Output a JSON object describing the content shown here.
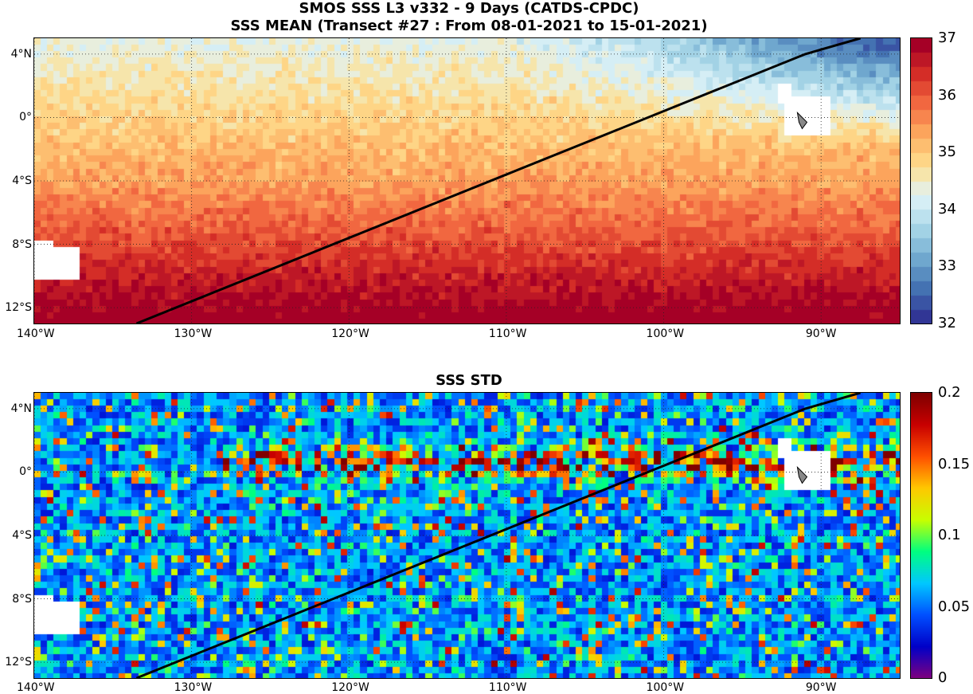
{
  "titles": {
    "line1": "SMOS SSS L3 v332 - 9 Days (CATDS-CPDC)",
    "line2": "SSS MEAN (Transect #27 : From 08-01-2021 to 15-01-2021)",
    "std": "SSS STD"
  },
  "map": {
    "lon_range": [
      -140,
      -85
    ],
    "lat_range": [
      -13,
      5
    ],
    "lon_ticks": [
      "140°W",
      "130°W",
      "120°W",
      "110°W",
      "100°W",
      "90°W"
    ],
    "lon_tick_values": [
      -140,
      -130,
      -120,
      -110,
      -100,
      -90
    ],
    "lat_ticks": [
      "4°N",
      "0°",
      "4°S",
      "8°S",
      "12°S"
    ],
    "lat_tick_values": [
      4,
      0,
      -4,
      -8,
      -12
    ],
    "transect": [
      [
        -133.5,
        -13
      ],
      [
        -91,
        4
      ],
      [
        -87.5,
        5
      ]
    ]
  },
  "mean_panel": {
    "colorbar": {
      "min": 32,
      "max": 37,
      "ticks": [
        "37",
        "36",
        "35",
        "34",
        "33",
        "32"
      ],
      "tick_values": [
        37,
        36,
        35,
        34,
        33,
        32
      ],
      "palette": [
        "#313695",
        "#4575b4",
        "#74add1",
        "#abd9e9",
        "#e0f3f8",
        "#fee090",
        "#fdae61",
        "#f46d43",
        "#d73027",
        "#a50026"
      ]
    }
  },
  "std_panel": {
    "colorbar": {
      "min": 0,
      "max": 0.2,
      "ticks": [
        "0.2",
        "0.15",
        "0.1",
        "0.05",
        "0"
      ],
      "tick_values": [
        0.2,
        0.15,
        0.1,
        0.05,
        0
      ],
      "palette": [
        "#7f007f",
        "#0000c8",
        "#0050ff",
        "#00c8ff",
        "#00ff80",
        "#c8ff00",
        "#ffc800",
        "#ff5000",
        "#c80000",
        "#7f0000"
      ]
    }
  }
}
